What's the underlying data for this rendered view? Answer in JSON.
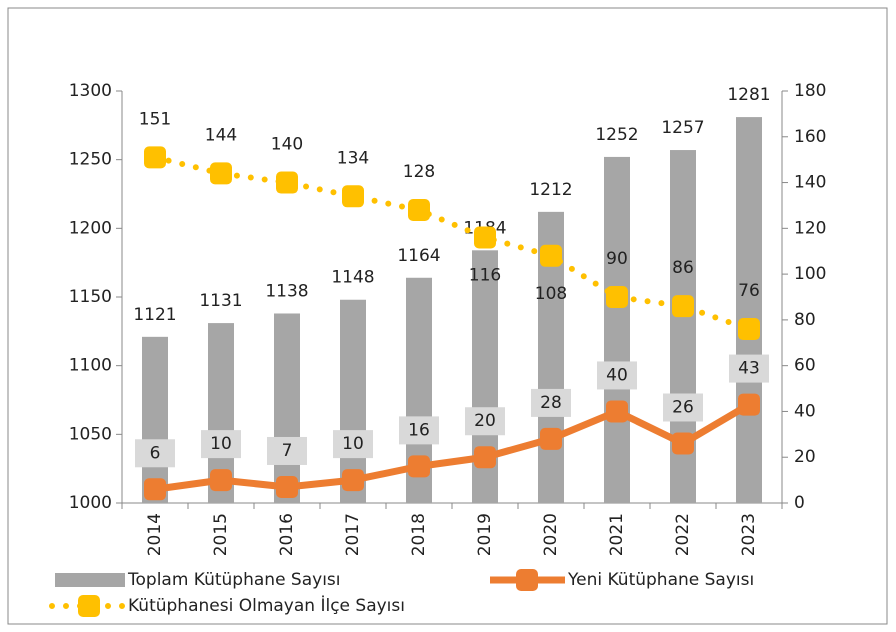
{
  "chart_data": {
    "type": "bar",
    "categories": [
      "2014",
      "2015",
      "2016",
      "2017",
      "2018",
      "2019",
      "2020",
      "2021",
      "2022",
      "2023"
    ],
    "series": [
      {
        "name": "Toplam Kütüphane Sayısı",
        "type": "bar",
        "color": "#a6a6a6",
        "values": [
          1121,
          1131,
          1138,
          1148,
          1164,
          1184,
          1212,
          1252,
          1257,
          1281
        ]
      },
      {
        "name": "Yeni Kütüphane Sayısı",
        "type": "line",
        "axis": "y2",
        "color": "#ed7d31",
        "values": [
          6,
          10,
          7,
          10,
          16,
          20,
          28,
          40,
          26,
          43
        ]
      },
      {
        "name": "Kütüphanesi Olmayan İlçe Sayısı",
        "type": "dotted",
        "axis": "y2",
        "color": "#ffc000",
        "values": [
          151,
          144,
          140,
          134,
          128,
          116,
          108,
          90,
          86,
          76
        ]
      }
    ],
    "ylim": [
      1000,
      1300
    ],
    "yticks": [
      1000,
      1050,
      1100,
      1150,
      1200,
      1250,
      1300
    ],
    "y2lim": [
      0,
      180
    ],
    "y2ticks": [
      0,
      20,
      40,
      60,
      80,
      100,
      120,
      140,
      160,
      180
    ]
  }
}
